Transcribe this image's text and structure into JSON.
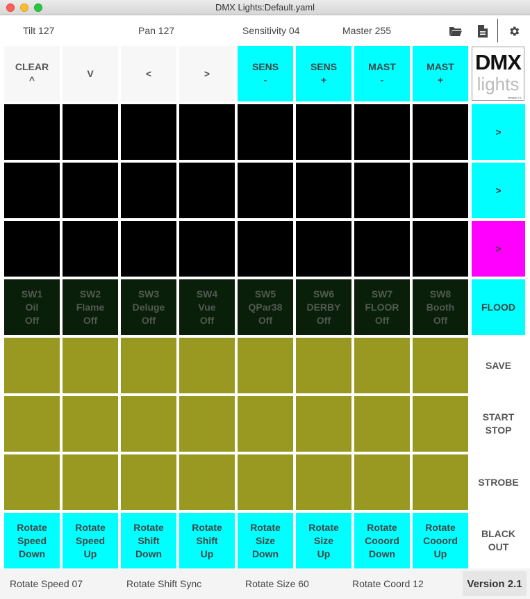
{
  "window": {
    "title": "DMX Lights:Default.yaml"
  },
  "status_top": {
    "tilt": "Tilt 127",
    "pan": "Pan 127",
    "sensitivity": "Sensitivity 04",
    "master": "Master 255"
  },
  "toolbar": {
    "icons": [
      "folder-open-icon",
      "document-icon",
      "gear-icon"
    ]
  },
  "header_row": [
    [
      "CLEAR",
      "^"
    ],
    [
      "V"
    ],
    [
      "<"
    ],
    [
      ">"
    ],
    [
      "SENS",
      "-"
    ],
    [
      "SENS",
      "+"
    ],
    [
      "MAST",
      "-"
    ],
    [
      "MAST",
      "+"
    ]
  ],
  "logo": {
    "line1": "DMX",
    "line2": "lights",
    "small": "Version 2.1"
  },
  "side_buttons": [
    [
      ">"
    ],
    [
      ">"
    ],
    [
      ">"
    ],
    [
      "FLOOD"
    ],
    [
      "SAVE"
    ],
    [
      "START",
      "STOP"
    ],
    [
      "STROBE"
    ],
    [
      "BLACK",
      "OUT"
    ]
  ],
  "switches": [
    [
      "SW1",
      "Oil",
      "Off"
    ],
    [
      "SW2",
      "Flame",
      "Off"
    ],
    [
      "SW3",
      "Deluge",
      "Off"
    ],
    [
      "SW4",
      "Vue",
      "Off"
    ],
    [
      "SW5",
      "QPar38",
      "Off"
    ],
    [
      "SW6",
      "DERBY",
      "Off"
    ],
    [
      "SW7",
      "FLOOR",
      "Off"
    ],
    [
      "SW8",
      "Booth",
      "Off"
    ]
  ],
  "rotate_row": [
    [
      "Rotate",
      "Speed",
      "Down"
    ],
    [
      "Rotate",
      "Speed",
      "Up"
    ],
    [
      "Rotate",
      "Shift",
      "Down"
    ],
    [
      "Rotate",
      "Shift",
      "Up"
    ],
    [
      "Rotate",
      "Size",
      "Down"
    ],
    [
      "Rotate",
      "Size",
      "Up"
    ],
    [
      "Rotate",
      "Cooord",
      "Down"
    ],
    [
      "Rotate",
      "Cooord",
      "Up"
    ]
  ],
  "status_bottom": {
    "rotate_speed": "Rotate Speed 07",
    "rotate_shift": "Rotate Shift Sync",
    "rotate_size": "Rotate Size 60",
    "rotate_coord": "Rotate Coord 12",
    "version": "Version 2.1"
  },
  "colors": {
    "cyan": "#00ffff",
    "magenta": "#ff00ff",
    "black": "#000000",
    "dark_green": "#0a1f0a",
    "olive": "#999922"
  }
}
